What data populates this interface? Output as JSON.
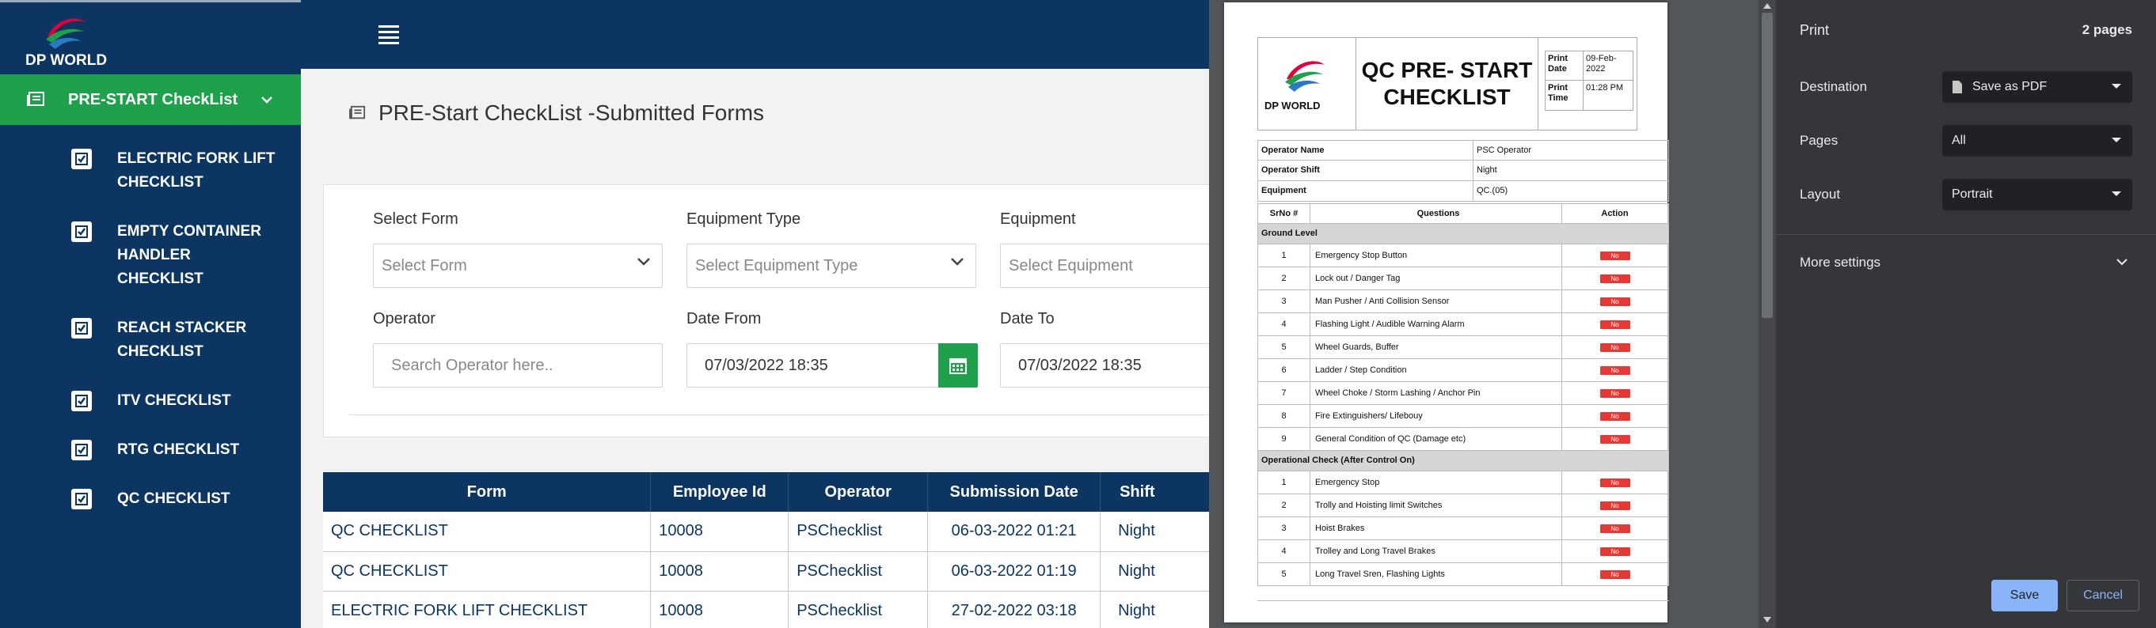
{
  "app": {
    "logo_text": "DP WORLD",
    "sidebar": {
      "active_item": "PRE-START CheckList",
      "items": [
        {
          "label_lines": [
            "ELECTRIC FORK LIFT",
            "CHECKLIST"
          ]
        },
        {
          "label_lines": [
            "EMPTY CONTAINER",
            "HANDLER",
            "CHECKLIST"
          ]
        },
        {
          "label_lines": [
            "REACH STACKER",
            "CHECKLIST"
          ]
        },
        {
          "label_lines": [
            "ITV CHECKLIST"
          ]
        },
        {
          "label_lines": [
            "RTG CHECKLIST"
          ]
        },
        {
          "label_lines": [
            "QC CHECKLIST"
          ]
        }
      ]
    },
    "page_title": "PRE-Start CheckList -Submitted Forms",
    "filters": {
      "select_form_label": "Select Form",
      "select_form_placeholder": "Select Form",
      "equipment_type_label": "Equipment Type",
      "equipment_type_placeholder": "Select Equipment Type",
      "equipment_label": "Equipment",
      "equipment_placeholder": "Select Equipment",
      "operator_label": "Operator",
      "operator_placeholder": "Search Operator here..",
      "date_from_label": "Date From",
      "date_from_value": "07/03/2022 18:35",
      "date_to_label": "Date To",
      "date_to_value": "07/03/2022 18:35"
    },
    "table": {
      "headers": [
        "Form",
        "Employee Id",
        "Operator",
        "Submission Date",
        "Shift"
      ],
      "rows": [
        [
          "QC CHECKLIST",
          "10008",
          "PSChecklist",
          "06-03-2022 01:21",
          "Night"
        ],
        [
          "QC CHECKLIST",
          "10008",
          "PSChecklist",
          "06-03-2022 01:19",
          "Night"
        ],
        [
          "ELECTRIC FORK LIFT CHECKLIST",
          "10008",
          "PSChecklist",
          "27-02-2022 03:18",
          "Night"
        ]
      ]
    }
  },
  "preview": {
    "logo_text": "DP WORLD",
    "title_lines": [
      "QC PRE- START",
      "CHECKLIST"
    ],
    "print_date_label": "Print Date",
    "print_date_value": "09-Feb-2022",
    "print_time_label": "Print Time",
    "print_time_value": "01:28 PM",
    "info": [
      {
        "key": "Operator Name",
        "value": "PSC Operator"
      },
      {
        "key": "Operator Shift",
        "value": "Night"
      },
      {
        "key": "Equipment",
        "value": "QC.(05)"
      }
    ],
    "q_headers": [
      "SrNo #",
      "Questions",
      "Action"
    ],
    "sections": [
      {
        "name": "Ground Level",
        "rows": [
          [
            "1",
            "Emergency Stop Button",
            "No"
          ],
          [
            "2",
            "Lock out / Danger Tag",
            "No"
          ],
          [
            "3",
            "Man Pusher / Anti Collision Sensor",
            "No"
          ],
          [
            "4",
            "Flashing Light / Audible Warning Alarm",
            "No"
          ],
          [
            "5",
            "Wheel Guards, Buffer",
            "No"
          ],
          [
            "6",
            "Ladder / Step Condition",
            "No"
          ],
          [
            "7",
            "Wheel Choke / Storm Lashing / Anchor Pin",
            "No"
          ],
          [
            "8",
            "Fire Extinguishers/ Lifebouy",
            "No"
          ],
          [
            "9",
            "General Condition of QC (Damage etc)",
            "No"
          ]
        ]
      },
      {
        "name": "Operational Check (After Control On)",
        "rows": [
          [
            "1",
            "Emergency Stop",
            "No"
          ],
          [
            "2",
            "Trolly and Hoisting limit Switches",
            "No"
          ],
          [
            "3",
            "Hoist Brakes",
            "No"
          ],
          [
            "4",
            "Trolley and Long Travel Brakes",
            "No"
          ],
          [
            "5",
            "Long Travel Sren, Flashing Lights",
            "No"
          ]
        ]
      }
    ]
  },
  "print_panel": {
    "title": "Print",
    "pages_count": "2 pages",
    "destination_label": "Destination",
    "destination_value": "Save as PDF",
    "pages_label": "Pages",
    "pages_value": "All",
    "layout_label": "Layout",
    "layout_value": "Portrait",
    "more_settings": "More settings",
    "save_label": "Save",
    "cancel_label": "Cancel"
  },
  "colors": {
    "navy": "#0c3661",
    "green": "#1fa14b",
    "red_badge": "#e53935",
    "print_bg": "#35363a",
    "accent_blue": "#8ab4f8"
  }
}
